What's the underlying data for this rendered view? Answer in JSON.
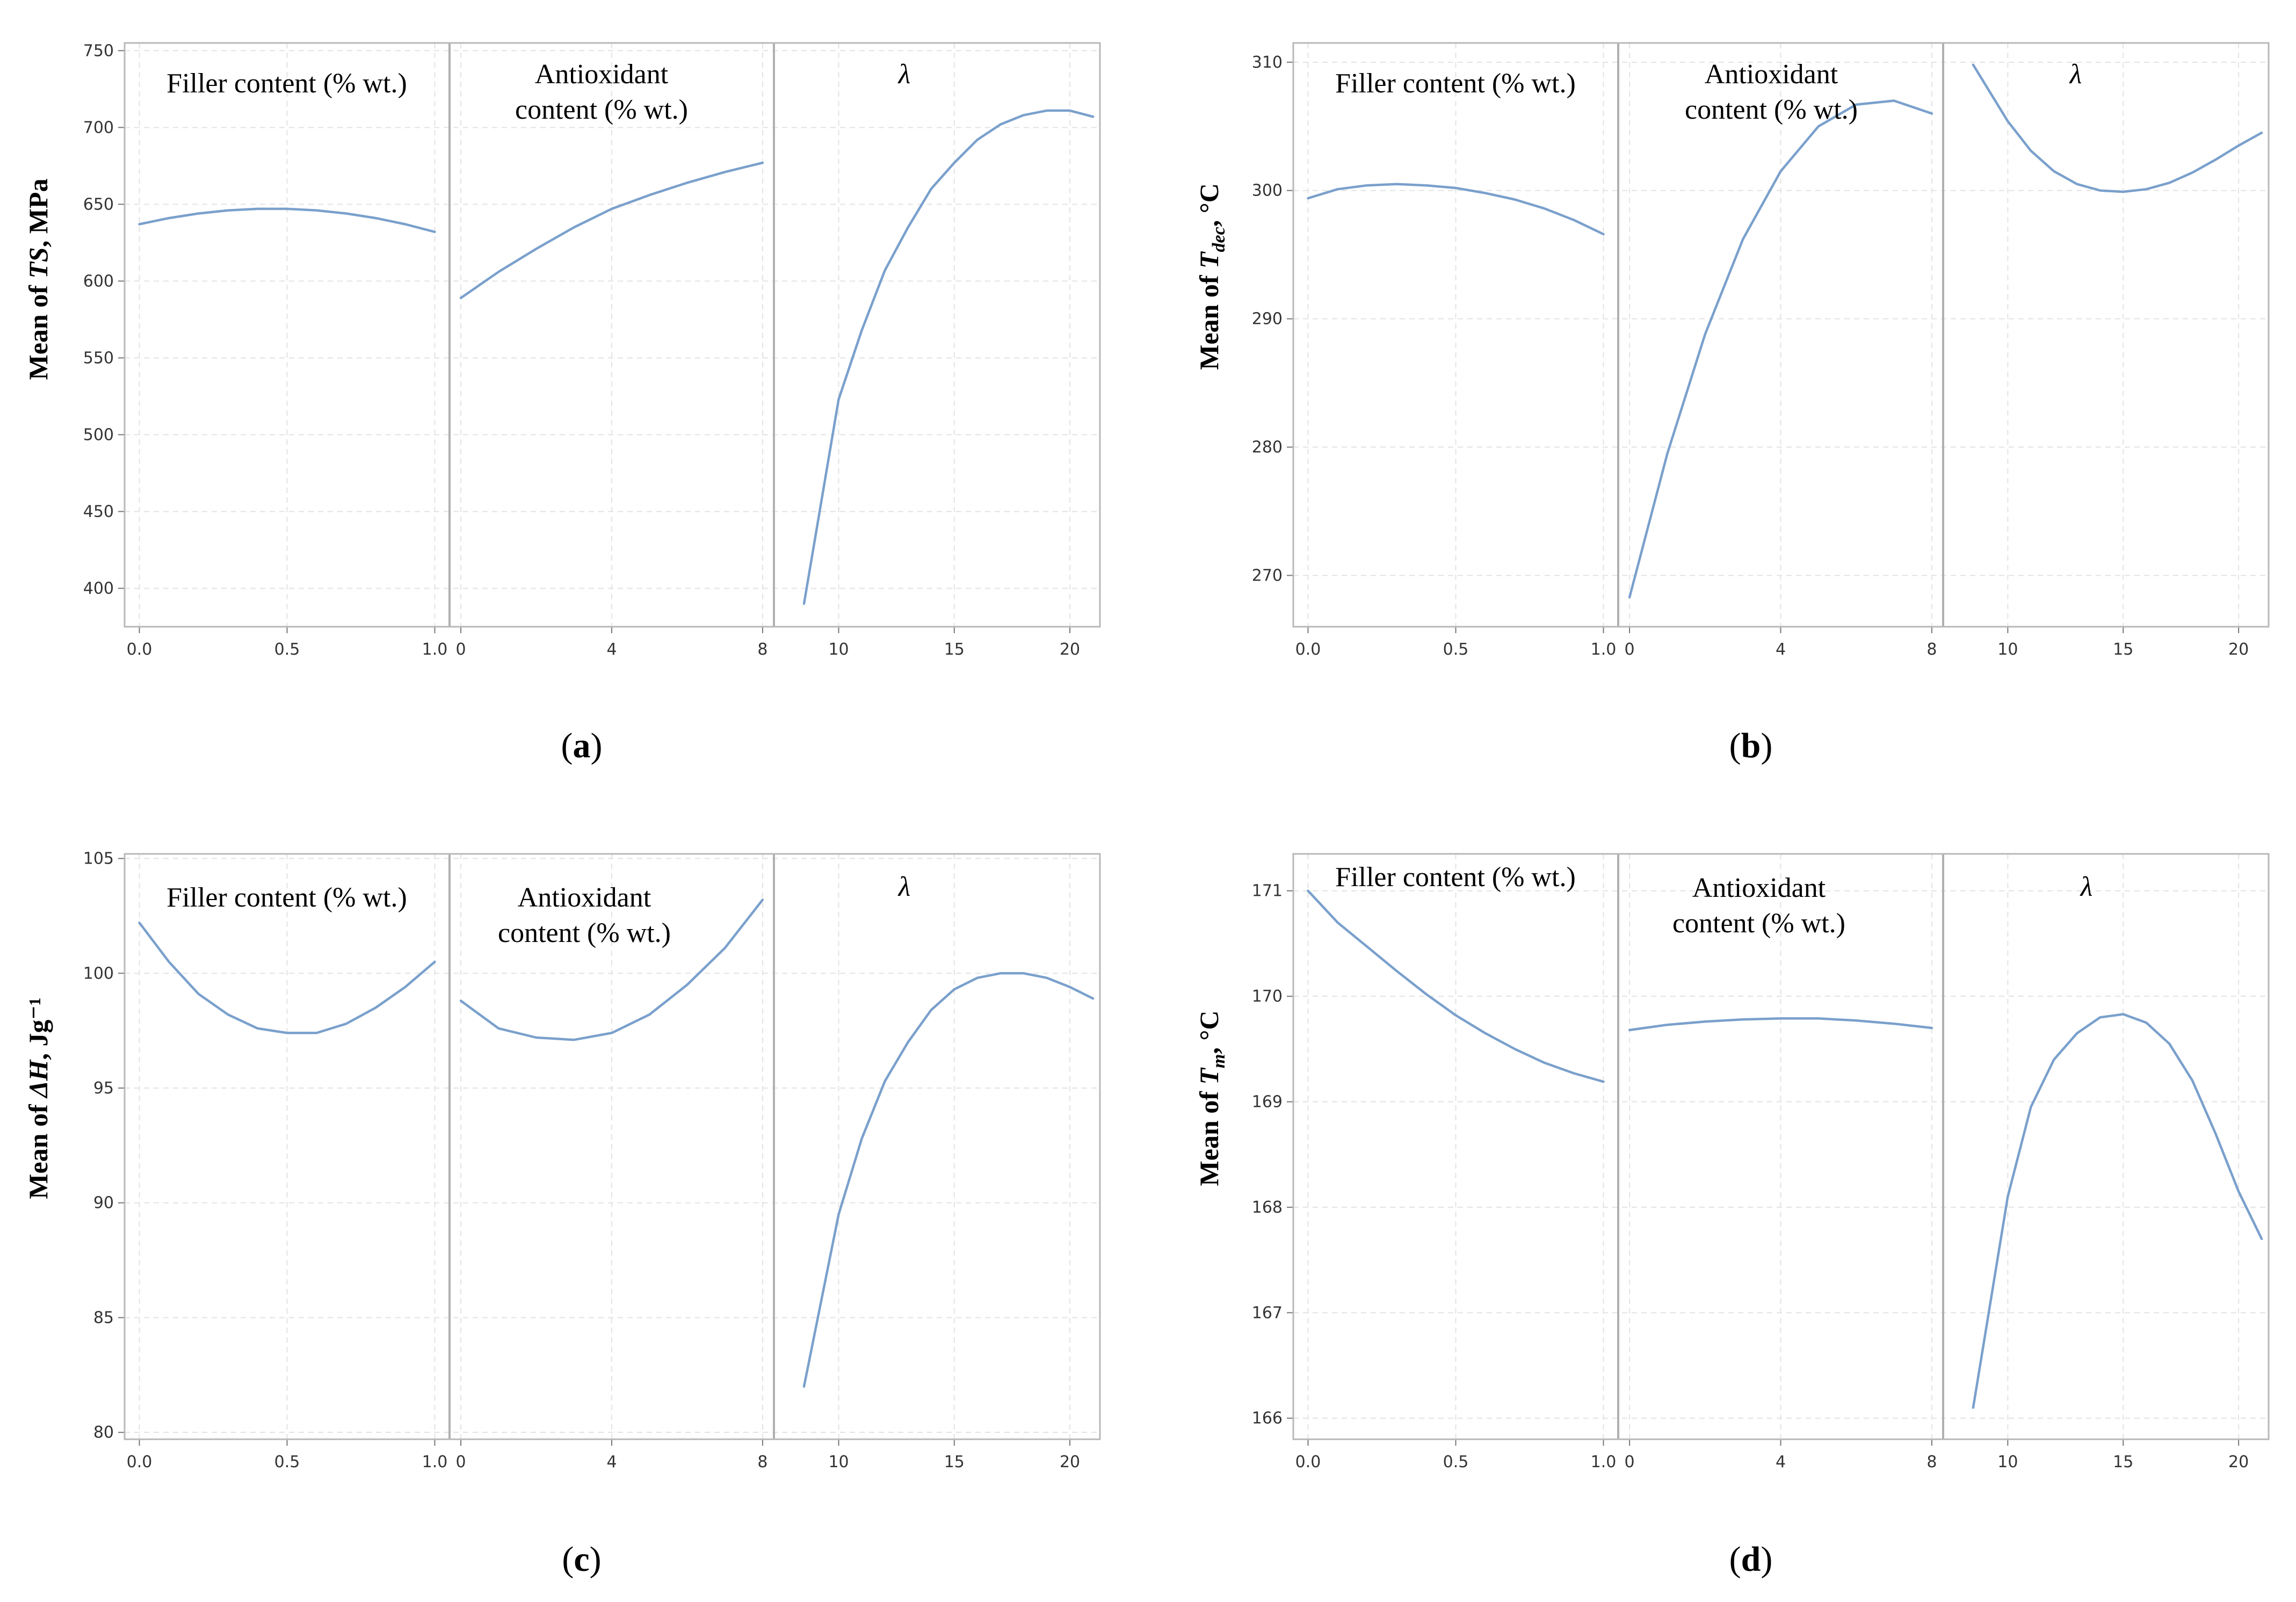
{
  "colors": {
    "line": "#7aa0cc",
    "frame": "#b8b8b8",
    "grid": "#e3e3e3",
    "separator": "#b0b0b0"
  },
  "chart_data": [
    {
      "type": "line",
      "caption": {
        "open": "(",
        "letter": "a",
        "close": ")"
      },
      "ylabel": {
        "prefix": "Mean of ",
        "var": "TS",
        "sub": "",
        "suffix": ", MPa"
      },
      "ylim": [
        375,
        755
      ],
      "yticks": [
        "750",
        "700",
        "650",
        "600",
        "550",
        "500",
        "450",
        "400"
      ],
      "panels": [
        {
          "label": [
            "Filler content (% wt.)"
          ],
          "xlim": [
            -0.05,
            1.05
          ],
          "xticks": [
            "0.0",
            "0.5",
            "1.0"
          ],
          "x": [
            0,
            0.1,
            0.2,
            0.3,
            0.4,
            0.5,
            0.6,
            0.7,
            0.8,
            0.9,
            1.0
          ],
          "y": [
            637,
            641,
            644,
            646,
            647,
            647,
            646,
            644,
            641,
            637,
            632
          ]
        },
        {
          "label": [
            "Antioxidant",
            "content (% wt.)"
          ],
          "xlim": [
            -0.3,
            8.3
          ],
          "xticks": [
            "0",
            "4",
            "8"
          ],
          "x": [
            0,
            1,
            2,
            3,
            4,
            5,
            6,
            7,
            8
          ],
          "y": [
            589,
            606,
            621,
            635,
            647,
            656,
            664,
            671,
            677
          ]
        },
        {
          "label": [
            "λ"
          ],
          "xlim": [
            7.2,
            21.3
          ],
          "xticks": [
            "10",
            "15",
            "20"
          ],
          "x": [
            8.5,
            10,
            11,
            12,
            13,
            14,
            15,
            16,
            17,
            18,
            19,
            20,
            21
          ],
          "y": [
            390,
            523,
            568,
            607,
            635,
            660,
            677,
            692,
            702,
            708,
            711,
            711,
            707
          ]
        }
      ]
    },
    {
      "type": "line",
      "caption": {
        "open": "(",
        "letter": "b",
        "close": ")"
      },
      "ylabel": {
        "prefix": "Mean of ",
        "var": "T",
        "sub": "dec",
        "suffix": ", °C"
      },
      "ylim": [
        266,
        311.5
      ],
      "yticks": [
        "310",
        "300",
        "290",
        "280",
        "270"
      ],
      "panels": [
        {
          "label": [
            "Filler content (% wt.)"
          ],
          "xlim": [
            -0.05,
            1.05
          ],
          "xticks": [
            "0.0",
            "0.5",
            "1.0"
          ],
          "x": [
            0,
            0.1,
            0.2,
            0.3,
            0.4,
            0.5,
            0.6,
            0.7,
            0.8,
            0.9,
            1.0
          ],
          "y": [
            299.4,
            300.1,
            300.4,
            300.5,
            300.4,
            300.2,
            299.8,
            299.3,
            298.6,
            297.7,
            296.6
          ]
        },
        {
          "label": [
            "Antioxidant",
            "content (% wt.)"
          ],
          "xlim": [
            -0.3,
            8.3
          ],
          "xticks": [
            "0",
            "4",
            "8"
          ],
          "x": [
            0,
            1,
            2,
            3,
            4,
            5,
            6,
            7,
            8
          ],
          "y": [
            268.3,
            279.5,
            288.8,
            296.2,
            301.5,
            305.0,
            306.7,
            307.0,
            306.0
          ]
        },
        {
          "label": [
            "λ"
          ],
          "xlim": [
            7.2,
            21.3
          ],
          "xticks": [
            "10",
            "15",
            "20"
          ],
          "x": [
            8.5,
            10,
            11,
            12,
            13,
            14,
            15,
            16,
            17,
            18,
            19,
            20,
            21
          ],
          "y": [
            309.8,
            305.4,
            303.1,
            301.5,
            300.5,
            300.0,
            299.9,
            300.1,
            300.6,
            301.4,
            302.4,
            303.5,
            304.5
          ]
        }
      ]
    },
    {
      "type": "line",
      "caption": {
        "open": "(",
        "letter": "c",
        "close": ")"
      },
      "ylabel": {
        "prefix": "Mean of ",
        "var": "ΔH",
        "sub": "",
        "suffix": ", Jg⁻¹"
      },
      "ylim": [
        79.7,
        105.2
      ],
      "yticks": [
        "105",
        "100",
        "95",
        "90",
        "85",
        "80"
      ],
      "panels": [
        {
          "label": [
            "Filler content (% wt.)"
          ],
          "xlim": [
            -0.05,
            1.05
          ],
          "xticks": [
            "0.0",
            "0.5",
            "1.0"
          ],
          "x": [
            0,
            0.1,
            0.2,
            0.3,
            0.4,
            0.5,
            0.6,
            0.7,
            0.8,
            0.9,
            1.0
          ],
          "y": [
            102.2,
            100.5,
            99.1,
            98.2,
            97.6,
            97.4,
            97.4,
            97.8,
            98.5,
            99.4,
            100.5
          ]
        },
        {
          "label": [
            "Antioxidant",
            "content (% wt.)"
          ],
          "xlim": [
            -0.3,
            8.3
          ],
          "xticks": [
            "0",
            "4",
            "8"
          ],
          "x": [
            0,
            1,
            2,
            3,
            4,
            5,
            6,
            7,
            8
          ],
          "y": [
            98.8,
            97.6,
            97.2,
            97.1,
            97.4,
            98.2,
            99.5,
            101.1,
            103.2
          ]
        },
        {
          "label": [
            "λ"
          ],
          "xlim": [
            7.2,
            21.3
          ],
          "xticks": [
            "10",
            "15",
            "20"
          ],
          "x": [
            8.5,
            10,
            11,
            12,
            13,
            14,
            15,
            16,
            17,
            18,
            19,
            20,
            21
          ],
          "y": [
            82.0,
            89.5,
            92.8,
            95.3,
            97.0,
            98.4,
            99.3,
            99.8,
            100.0,
            100.0,
            99.8,
            99.4,
            98.9
          ]
        }
      ]
    },
    {
      "type": "line",
      "caption": {
        "open": "(",
        "letter": "d",
        "close": ")"
      },
      "ylabel": {
        "prefix": "Mean of ",
        "var": "T",
        "sub": "m",
        "suffix": ", °C"
      },
      "ylim": [
        165.8,
        171.35
      ],
      "yticks": [
        "171",
        "170",
        "169",
        "168",
        "167",
        "166"
      ],
      "panels": [
        {
          "label": [
            "Filler content (% wt.)"
          ],
          "xlim": [
            -0.05,
            1.05
          ],
          "xticks": [
            "0.0",
            "0.5",
            "1.0"
          ],
          "x": [
            0,
            0.1,
            0.2,
            0.3,
            0.4,
            0.5,
            0.6,
            0.7,
            0.8,
            0.9,
            1.0
          ],
          "y": [
            171.0,
            170.7,
            170.47,
            170.24,
            170.02,
            169.82,
            169.65,
            169.5,
            169.37,
            169.27,
            169.19
          ]
        },
        {
          "label": [
            "Antioxidant",
            "content (% wt.)"
          ],
          "xlim": [
            -0.3,
            8.3
          ],
          "xticks": [
            "0",
            "4",
            "8"
          ],
          "x": [
            0,
            1,
            2,
            3,
            4,
            5,
            6,
            7,
            8
          ],
          "y": [
            169.68,
            169.73,
            169.76,
            169.78,
            169.79,
            169.79,
            169.77,
            169.74,
            169.7
          ]
        },
        {
          "label": [
            "λ"
          ],
          "xlim": [
            7.2,
            21.3
          ],
          "xticks": [
            "10",
            "15",
            "20"
          ],
          "x": [
            8.5,
            10,
            11,
            12,
            13,
            14,
            15,
            16,
            17,
            18,
            19,
            20,
            21
          ],
          "y": [
            166.1,
            168.1,
            168.95,
            169.4,
            169.65,
            169.8,
            169.83,
            169.75,
            169.55,
            169.2,
            168.7,
            168.15,
            167.7
          ]
        }
      ]
    }
  ]
}
